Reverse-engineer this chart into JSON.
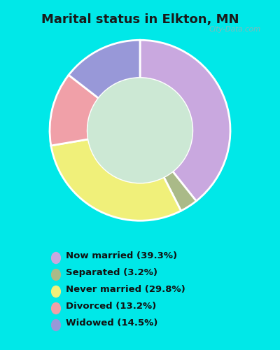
{
  "title": "Marital status in Elkton, MN",
  "title_fontsize": 13,
  "title_fontweight": "bold",
  "slices": [
    39.3,
    3.2,
    29.8,
    13.2,
    14.5
  ],
  "labels": [
    "Now married (39.3%)",
    "Separated (3.2%)",
    "Never married (29.8%)",
    "Divorced (13.2%)",
    "Widowed (14.5%)"
  ],
  "colors": [
    "#c9a8df",
    "#aaba88",
    "#f0f07a",
    "#f0a0a8",
    "#9898d8"
  ],
  "bg_outer": "#00e8e8",
  "bg_panel": "#cce8d4",
  "watermark": "City-Data.com",
  "legend_fontsize": 9.5,
  "donut_width": 0.42,
  "start_angle": 90
}
